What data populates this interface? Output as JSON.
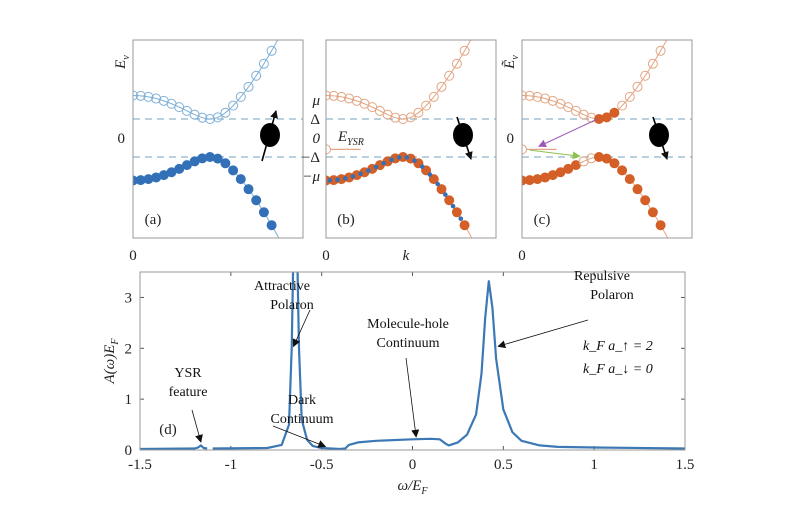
{
  "colors": {
    "blue_filled": "#3370b8",
    "blue_open": "#7fb0d6",
    "orange_filled": "#d45f27",
    "orange_open": "#e3a583",
    "dashed": "#8fb3cc",
    "purple_arrow": "#9b59b6",
    "green_arrow": "#8cc152",
    "spectrum_line": "#3c78b5"
  },
  "chart_data": [
    {
      "panel": "(a)",
      "type": "scatter",
      "ylabel": "E",
      "ylabel_sub": "ν",
      "yticks": [
        "0"
      ],
      "xticks": [
        "0"
      ],
      "params": {
        "mu": 1,
        "Delta": 0.5
      },
      "k": [
        0,
        0.1,
        0.2,
        0.3,
        0.4,
        0.5,
        0.6,
        0.7,
        0.8,
        0.9,
        1.0,
        1.1,
        1.2,
        1.3,
        1.4,
        1.5,
        1.6,
        1.7,
        1.8
      ],
      "upper_band": "open",
      "lower_band": "filled",
      "spin": "up"
    },
    {
      "panel": "(b)",
      "type": "scatter",
      "yticks": [
        "μ",
        "Δ",
        "0",
        "−Δ",
        "−μ"
      ],
      "xticks": [
        "0"
      ],
      "xlabel": "k",
      "params": {
        "mu": 1,
        "Delta": 0.5
      },
      "ysr_label": "E",
      "ysr_label_sub": "YSR",
      "E_ysr": -0.3,
      "upper_band": "open",
      "lower_band": "filled",
      "spin": "down"
    },
    {
      "panel": "(c)",
      "type": "scatter",
      "ylabel": "Ẽ",
      "ylabel_sub": "ν",
      "yticks": [
        "0"
      ],
      "xticks": [
        "0"
      ],
      "params": {
        "mu": 1,
        "Delta": 0.5
      },
      "E_ysr": -0.3,
      "spin": "down"
    },
    {
      "panel": "(d)",
      "type": "line",
      "xlabel": "ω/E",
      "xlabel_sub": "F",
      "ylabel": "A(ω)E",
      "ylabel_sub": "F",
      "xlim": [
        -1.5,
        1.5
      ],
      "ylim": [
        0,
        3.5
      ],
      "xticks": [
        "-1.5",
        "-1",
        "-0.5",
        "0",
        "0.5",
        "1",
        "1.5"
      ],
      "xtick_values": [
        -1.5,
        -1,
        -0.5,
        0,
        0.5,
        1,
        1.5
      ],
      "yticks": [
        "0",
        "1",
        "2",
        "3"
      ],
      "ytick_values": [
        0,
        1,
        2,
        3
      ],
      "x": [
        -1.5,
        -1.2,
        -1.18,
        -1.165,
        -1.15,
        -1.13,
        null,
        -1.1,
        -0.8,
        -0.72,
        -0.68,
        -0.665,
        -0.655,
        -0.635,
        -0.625,
        -0.61,
        -0.58,
        -0.55,
        -0.5,
        -0.4,
        -0.37,
        -0.35,
        -0.3,
        -0.2,
        0,
        0.1,
        0.15,
        0.18,
        0.2,
        0.25,
        0.3,
        0.35,
        0.38,
        0.4,
        0.42,
        0.44,
        0.46,
        0.5,
        0.55,
        0.6,
        0.7,
        0.8,
        1.0,
        1.5
      ],
      "y": [
        0.02,
        0.03,
        0.05,
        0.09,
        0.04,
        0.03,
        null,
        0.03,
        0.04,
        0.1,
        0.5,
        2.0,
        4.0,
        4.0,
        2.0,
        0.6,
        0.2,
        0.08,
        0.04,
        0.02,
        0.03,
        0.1,
        0.15,
        0.18,
        0.21,
        0.22,
        0.21,
        0.13,
        0.09,
        0.15,
        0.3,
        0.7,
        1.5,
        2.6,
        3.32,
        2.8,
        1.8,
        0.8,
        0.35,
        0.18,
        0.09,
        0.06,
        0.05,
        0.03
      ],
      "annotations": [
        {
          "text": [
            "Attractive",
            "Polaron"
          ],
          "x": -0.655,
          "y": 2.0
        },
        {
          "text": [
            "YSR",
            "feature"
          ],
          "x": -1.165,
          "y": 0.12
        },
        {
          "text": [
            "Dark",
            "Continuum"
          ],
          "x": -0.48,
          "y": 0.03
        },
        {
          "text": [
            "Molecule-hole",
            "Continuum"
          ],
          "x": 0.02,
          "y": 0.22
        },
        {
          "text": [
            "Repulsive",
            "Polaron"
          ],
          "x": 0.45,
          "y": 2.0
        }
      ],
      "params_text": [
        "k_F a_↑ = 2",
        "k_F a_↓ = 0"
      ],
      "panel_label": "(d)"
    }
  ]
}
